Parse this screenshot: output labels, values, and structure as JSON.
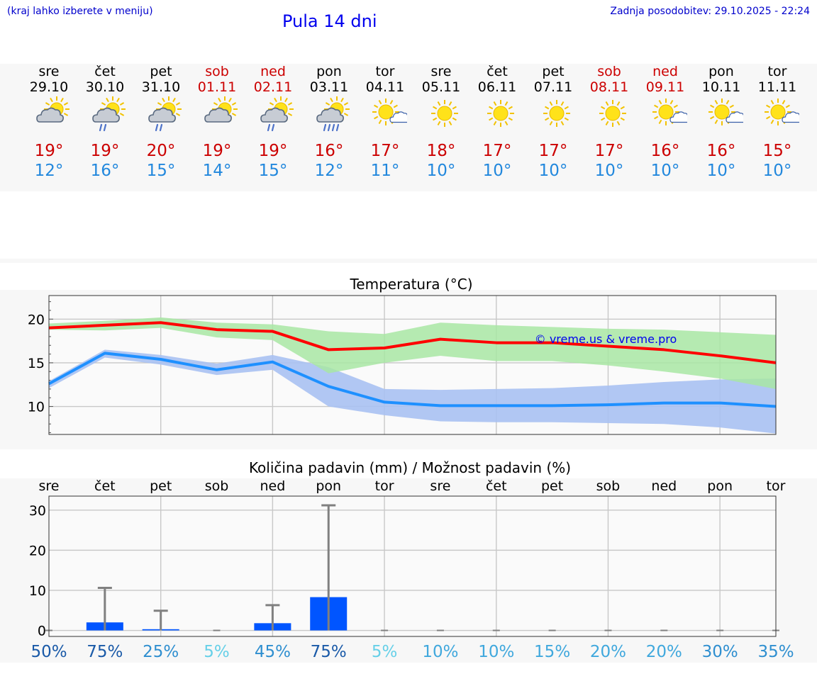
{
  "header": {
    "menu_hint": "(kraj lahko izberete v meniju)",
    "title": "Pula 14 dni",
    "updated": "Zadnja posodobitev: 29.10.2025 - 22:24"
  },
  "colors": {
    "weekend": "#cc0000",
    "max_temp": "#cc0000",
    "min_temp": "#2288dd",
    "max_line": "#ff0000",
    "min_line": "#1e90ff",
    "max_band": "#a8e6a3",
    "min_band": "#a9c1f2",
    "bar": "#0055ff"
  },
  "days": [
    {
      "name": "sre",
      "date": "29.10",
      "weekend": false,
      "icon": "cloudy-sun-icon",
      "tmax": "19°",
      "tmin": "12°"
    },
    {
      "name": "čet",
      "date": "30.10",
      "weekend": false,
      "icon": "rain-sun-icon",
      "tmax": "19°",
      "tmin": "16°"
    },
    {
      "name": "pet",
      "date": "31.10",
      "weekend": false,
      "icon": "rain-sun-icon",
      "tmax": "20°",
      "tmin": "15°"
    },
    {
      "name": "sob",
      "date": "01.11",
      "weekend": true,
      "icon": "cloudy-sun-icon",
      "tmax": "19°",
      "tmin": "14°"
    },
    {
      "name": "ned",
      "date": "02.11",
      "weekend": true,
      "icon": "rain-sun-icon",
      "tmax": "19°",
      "tmin": "15°"
    },
    {
      "name": "pon",
      "date": "03.11",
      "weekend": false,
      "icon": "heavy-rain-sun-icon",
      "tmax": "16°",
      "tmin": "12°"
    },
    {
      "name": "tor",
      "date": "04.11",
      "weekend": false,
      "icon": "sun-small-cloud-icon",
      "tmax": "17°",
      "tmin": "11°"
    },
    {
      "name": "sre",
      "date": "05.11",
      "weekend": false,
      "icon": "sun-icon",
      "tmax": "18°",
      "tmin": "10°"
    },
    {
      "name": "čet",
      "date": "06.11",
      "weekend": false,
      "icon": "sun-icon",
      "tmax": "17°",
      "tmin": "10°"
    },
    {
      "name": "pet",
      "date": "07.11",
      "weekend": false,
      "icon": "sun-icon",
      "tmax": "17°",
      "tmin": "10°"
    },
    {
      "name": "sob",
      "date": "08.11",
      "weekend": true,
      "icon": "sun-icon",
      "tmax": "17°",
      "tmin": "10°"
    },
    {
      "name": "ned",
      "date": "09.11",
      "weekend": true,
      "icon": "sun-small-cloud-icon",
      "tmax": "16°",
      "tmin": "10°"
    },
    {
      "name": "pon",
      "date": "10.11",
      "weekend": false,
      "icon": "sun-small-cloud-icon",
      "tmax": "16°",
      "tmin": "10°"
    },
    {
      "name": "tor",
      "date": "11.11",
      "weekend": false,
      "icon": "sun-small-cloud-icon",
      "tmax": "15°",
      "tmin": "10°"
    }
  ],
  "chart_data": [
    {
      "type": "line",
      "title": "Temperatura (°C)",
      "watermark": "© vreme.us & vreme.pro",
      "x": [
        0,
        1,
        2,
        3,
        4,
        5,
        6,
        7,
        8,
        9,
        10,
        11,
        12,
        13
      ],
      "ylim": [
        6.8,
        22.7
      ],
      "yticks": [
        10,
        15,
        20
      ],
      "series": [
        {
          "name": "max",
          "values": [
            19.0,
            19.3,
            19.6,
            18.8,
            18.6,
            16.5,
            16.7,
            17.7,
            17.3,
            17.3,
            16.9,
            16.5,
            15.8,
            15.0
          ],
          "band_upper": [
            19.5,
            19.8,
            20.2,
            19.6,
            19.4,
            18.6,
            18.3,
            19.6,
            19.3,
            19.1,
            18.9,
            18.8,
            18.5,
            18.2
          ],
          "band_lower": [
            18.8,
            18.7,
            19.0,
            17.9,
            17.6,
            13.8,
            15.0,
            15.8,
            15.2,
            15.2,
            14.7,
            14.0,
            13.2,
            12.0
          ]
        },
        {
          "name": "min",
          "values": [
            12.6,
            16.1,
            15.4,
            14.2,
            15.1,
            12.3,
            10.5,
            10.1,
            10.1,
            10.1,
            10.2,
            10.4,
            10.4,
            10.0
          ],
          "band_upper": [
            12.9,
            16.5,
            15.9,
            14.9,
            15.9,
            14.5,
            12.0,
            11.9,
            12.0,
            12.1,
            12.4,
            12.8,
            13.1,
            13.2
          ],
          "band_lower": [
            12.1,
            15.6,
            14.8,
            13.6,
            14.2,
            10.0,
            9.0,
            8.3,
            8.2,
            8.2,
            8.1,
            8.0,
            7.6,
            6.9
          ]
        }
      ]
    },
    {
      "type": "bar",
      "title": "Količina padavin (mm) / Možnost padavin (%)",
      "categories": [
        "sre",
        "čet",
        "pet",
        "sob",
        "ned",
        "pon",
        "tor",
        "sre",
        "čet",
        "pet",
        "sob",
        "ned",
        "pon",
        "tor"
      ],
      "values": [
        0,
        2,
        0.3,
        0,
        1.8,
        8.3,
        0,
        0,
        0,
        0,
        0,
        0,
        0,
        0
      ],
      "error_max": [
        0,
        10.6,
        4.9,
        0,
        6.3,
        31.2,
        0,
        0,
        0,
        0,
        0,
        0,
        0,
        0
      ],
      "probability": [
        "50%",
        "75%",
        "25%",
        "5%",
        "45%",
        "75%",
        "5%",
        "10%",
        "10%",
        "15%",
        "20%",
        "20%",
        "30%",
        "35%"
      ],
      "ylim": [
        -1.5,
        33.5
      ],
      "yticks": [
        0,
        10,
        20,
        30
      ]
    }
  ]
}
